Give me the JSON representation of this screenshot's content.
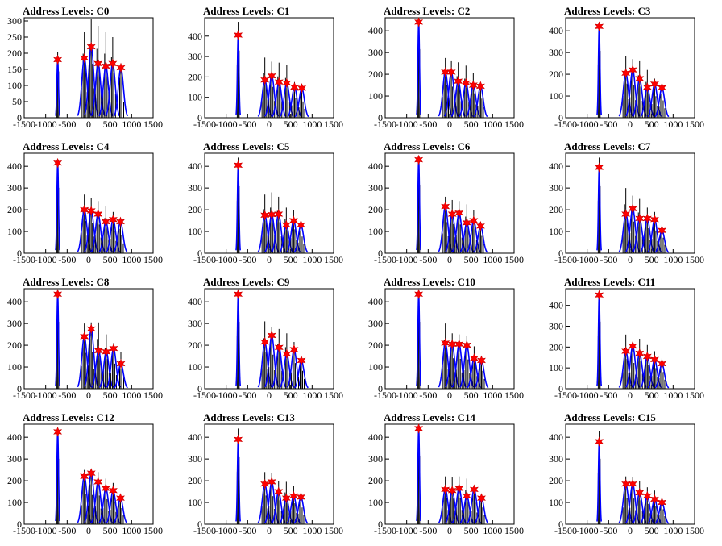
{
  "colors": {
    "histogram": "#000000",
    "fit": "#0000ff",
    "marker": "#ff0000"
  },
  "chart_data": [
    {
      "type": "histogram-with-markers",
      "title": "Address Levels: C0",
      "xlim": [
        -1500,
        1500
      ],
      "ylim": [
        0,
        310
      ],
      "xticks": [
        "-1500",
        "-1000",
        "-500",
        "0",
        "500",
        "1000",
        "1500"
      ],
      "yticks": [
        "0",
        "50",
        "100",
        "150",
        "200",
        "250",
        "300"
      ],
      "peaks": [
        {
          "x": -720,
          "y": 180,
          "h": 205
        },
        {
          "x": -100,
          "y": 185,
          "h": 265
        },
        {
          "x": 60,
          "y": 220,
          "h": 305
        },
        {
          "x": 220,
          "y": 168,
          "h": 285
        },
        {
          "x": 400,
          "y": 160,
          "h": 265
        },
        {
          "x": 560,
          "y": 168,
          "h": 250
        },
        {
          "x": 750,
          "y": 155,
          "h": 165
        }
      ]
    },
    {
      "type": "histogram-with-markers",
      "title": "Address Levels: C1",
      "xlim": [
        -1500,
        1500
      ],
      "ylim": [
        0,
        490
      ],
      "xticks": [
        "-1500",
        "-1000",
        "-500",
        "0",
        "500",
        "1000",
        "1500"
      ],
      "yticks": [
        "0",
        "100",
        "200",
        "300",
        "400"
      ],
      "peaks": [
        {
          "x": -720,
          "y": 405,
          "h": 470
        },
        {
          "x": -100,
          "y": 185,
          "h": 295
        },
        {
          "x": 60,
          "y": 205,
          "h": 275
        },
        {
          "x": 230,
          "y": 175,
          "h": 270
        },
        {
          "x": 410,
          "y": 170,
          "h": 260
        },
        {
          "x": 590,
          "y": 150,
          "h": 175
        },
        {
          "x": 760,
          "y": 145,
          "h": 145
        }
      ]
    },
    {
      "type": "histogram-with-markers",
      "title": "Address Levels: C2",
      "xlim": [
        -1500,
        1500
      ],
      "ylim": [
        0,
        460
      ],
      "xticks": [
        "-1500",
        "-1000",
        "-500",
        "0",
        "500",
        "1000",
        "1500"
      ],
      "yticks": [
        "0",
        "100",
        "200",
        "300",
        "400"
      ],
      "peaks": [
        {
          "x": -720,
          "y": 440,
          "h": 450
        },
        {
          "x": -100,
          "y": 210,
          "h": 275
        },
        {
          "x": 40,
          "y": 210,
          "h": 260
        },
        {
          "x": 200,
          "y": 168,
          "h": 255
        },
        {
          "x": 380,
          "y": 160,
          "h": 240
        },
        {
          "x": 550,
          "y": 150,
          "h": 205
        },
        {
          "x": 720,
          "y": 145,
          "h": 160
        }
      ]
    },
    {
      "type": "histogram-with-markers",
      "title": "Address Levels: C3",
      "xlim": [
        -1500,
        1500
      ],
      "ylim": [
        0,
        460
      ],
      "xticks": [
        "-1500",
        "-1000",
        "-500",
        "0",
        "500",
        "1000",
        "1500"
      ],
      "yticks": [
        "0",
        "100",
        "200",
        "300",
        "400"
      ],
      "peaks": [
        {
          "x": -720,
          "y": 420,
          "h": 440
        },
        {
          "x": -100,
          "y": 205,
          "h": 285
        },
        {
          "x": 60,
          "y": 220,
          "h": 270
        },
        {
          "x": 220,
          "y": 180,
          "h": 260
        },
        {
          "x": 400,
          "y": 140,
          "h": 220
        },
        {
          "x": 570,
          "y": 155,
          "h": 180
        },
        {
          "x": 740,
          "y": 138,
          "h": 145
        }
      ]
    },
    {
      "type": "histogram-with-markers",
      "title": "Address Levels: C4",
      "xlim": [
        -1500,
        1500
      ],
      "ylim": [
        0,
        460
      ],
      "xticks": [
        "-1500",
        "-1000",
        "-500",
        "0",
        "500",
        "1000",
        "1500"
      ],
      "yticks": [
        "0",
        "100",
        "200",
        "300",
        "400"
      ],
      "peaks": [
        {
          "x": -720,
          "y": 415,
          "h": 430
        },
        {
          "x": -100,
          "y": 200,
          "h": 270
        },
        {
          "x": 60,
          "y": 195,
          "h": 255
        },
        {
          "x": 220,
          "y": 180,
          "h": 240
        },
        {
          "x": 400,
          "y": 145,
          "h": 215
        },
        {
          "x": 570,
          "y": 155,
          "h": 190
        },
        {
          "x": 740,
          "y": 145,
          "h": 150
        }
      ]
    },
    {
      "type": "histogram-with-markers",
      "title": "Address Levels: C5",
      "xlim": [
        -1500,
        1500
      ],
      "ylim": [
        0,
        460
      ],
      "xticks": [
        "-1500",
        "-1000",
        "-500",
        "0",
        "500",
        "1000",
        "1500"
      ],
      "yticks": [
        "0",
        "100",
        "200",
        "300",
        "400"
      ],
      "peaks": [
        {
          "x": -720,
          "y": 405,
          "h": 440
        },
        {
          "x": -100,
          "y": 175,
          "h": 270
        },
        {
          "x": 60,
          "y": 178,
          "h": 280
        },
        {
          "x": 220,
          "y": 180,
          "h": 260
        },
        {
          "x": 400,
          "y": 130,
          "h": 210
        },
        {
          "x": 570,
          "y": 150,
          "h": 200
        },
        {
          "x": 740,
          "y": 130,
          "h": 140
        }
      ]
    },
    {
      "type": "histogram-with-markers",
      "title": "Address Levels: C6",
      "xlim": [
        -1500,
        1500
      ],
      "ylim": [
        0,
        460
      ],
      "xticks": [
        "-1500",
        "-1000",
        "-500",
        "0",
        "500",
        "1000",
        "1500"
      ],
      "yticks": [
        "0",
        "100",
        "200",
        "300",
        "400"
      ],
      "peaks": [
        {
          "x": -720,
          "y": 430,
          "h": 445
        },
        {
          "x": -100,
          "y": 215,
          "h": 260
        },
        {
          "x": 60,
          "y": 180,
          "h": 245
        },
        {
          "x": 220,
          "y": 185,
          "h": 240
        },
        {
          "x": 400,
          "y": 140,
          "h": 225
        },
        {
          "x": 560,
          "y": 150,
          "h": 200
        },
        {
          "x": 720,
          "y": 125,
          "h": 145
        }
      ]
    },
    {
      "type": "histogram-with-markers",
      "title": "Address Levels: C7",
      "xlim": [
        -1500,
        1500
      ],
      "ylim": [
        0,
        460
      ],
      "xticks": [
        "-1500",
        "-1000",
        "-500",
        "0",
        "500",
        "1000",
        "1500"
      ],
      "yticks": [
        "0",
        "100",
        "200",
        "300",
        "400"
      ],
      "peaks": [
        {
          "x": -720,
          "y": 395,
          "h": 440
        },
        {
          "x": -100,
          "y": 180,
          "h": 300
        },
        {
          "x": 60,
          "y": 205,
          "h": 265
        },
        {
          "x": 220,
          "y": 160,
          "h": 250
        },
        {
          "x": 400,
          "y": 160,
          "h": 210
        },
        {
          "x": 570,
          "y": 155,
          "h": 190
        },
        {
          "x": 740,
          "y": 105,
          "h": 130
        }
      ]
    },
    {
      "type": "histogram-with-markers",
      "title": "Address Levels: C8",
      "xlim": [
        -1500,
        1500
      ],
      "ylim": [
        0,
        460
      ],
      "xticks": [
        "-1500",
        "-1000",
        "-500",
        "0",
        "500",
        "1000",
        "1500"
      ],
      "yticks": [
        "0",
        "100",
        "200",
        "300",
        "400"
      ],
      "peaks": [
        {
          "x": -720,
          "y": 435,
          "h": 440
        },
        {
          "x": -100,
          "y": 240,
          "h": 300
        },
        {
          "x": 60,
          "y": 275,
          "h": 305
        },
        {
          "x": 230,
          "y": 175,
          "h": 305
        },
        {
          "x": 410,
          "y": 170,
          "h": 250
        },
        {
          "x": 580,
          "y": 185,
          "h": 210
        },
        {
          "x": 750,
          "y": 115,
          "h": 170
        }
      ]
    },
    {
      "type": "histogram-with-markers",
      "title": "Address Levels: C9",
      "xlim": [
        -1500,
        1500
      ],
      "ylim": [
        0,
        460
      ],
      "xticks": [
        "-1500",
        "-1000",
        "-500",
        "0",
        "500",
        "1000",
        "1500"
      ],
      "yticks": [
        "0",
        "100",
        "200",
        "300",
        "400"
      ],
      "peaks": [
        {
          "x": -720,
          "y": 435,
          "h": 440
        },
        {
          "x": -100,
          "y": 215,
          "h": 310
        },
        {
          "x": 60,
          "y": 245,
          "h": 285
        },
        {
          "x": 230,
          "y": 190,
          "h": 275
        },
        {
          "x": 410,
          "y": 160,
          "h": 255
        },
        {
          "x": 580,
          "y": 180,
          "h": 215
        },
        {
          "x": 750,
          "y": 130,
          "h": 150
        }
      ]
    },
    {
      "type": "histogram-with-markers",
      "title": "Address Levels: C10",
      "xlim": [
        -1500,
        1500
      ],
      "ylim": [
        0,
        460
      ],
      "xticks": [
        "-1500",
        "-1000",
        "-500",
        "0",
        "500",
        "1000",
        "1500"
      ],
      "yticks": [
        "0",
        "100",
        "200",
        "300",
        "400"
      ],
      "peaks": [
        {
          "x": -720,
          "y": 435,
          "h": 440
        },
        {
          "x": -100,
          "y": 210,
          "h": 300
        },
        {
          "x": 60,
          "y": 205,
          "h": 255
        },
        {
          "x": 220,
          "y": 205,
          "h": 250
        },
        {
          "x": 400,
          "y": 200,
          "h": 245
        },
        {
          "x": 570,
          "y": 140,
          "h": 195
        },
        {
          "x": 740,
          "y": 130,
          "h": 150
        }
      ]
    },
    {
      "type": "histogram-with-markers",
      "title": "Address Levels: C11",
      "xlim": [
        -1500,
        1500
      ],
      "ylim": [
        0,
        480
      ],
      "xticks": [
        "-1500",
        "-1000",
        "-500",
        "0",
        "500",
        "1000",
        "1500"
      ],
      "yticks": [
        "0",
        "100",
        "200",
        "300",
        "400"
      ],
      "peaks": [
        {
          "x": -720,
          "y": 450,
          "h": 460
        },
        {
          "x": -100,
          "y": 180,
          "h": 260
        },
        {
          "x": 60,
          "y": 205,
          "h": 225
        },
        {
          "x": 220,
          "y": 170,
          "h": 240
        },
        {
          "x": 400,
          "y": 155,
          "h": 210
        },
        {
          "x": 570,
          "y": 140,
          "h": 180
        },
        {
          "x": 740,
          "y": 120,
          "h": 145
        }
      ]
    },
    {
      "type": "histogram-with-markers",
      "title": "Address Levels: C12",
      "xlim": [
        -1500,
        1500
      ],
      "ylim": [
        0,
        460
      ],
      "xticks": [
        "-1500",
        "-1000",
        "-500",
        "0",
        "500",
        "1000",
        "1500"
      ],
      "yticks": [
        "0",
        "100",
        "200",
        "300",
        "400"
      ],
      "peaks": [
        {
          "x": -720,
          "y": 425,
          "h": 430
        },
        {
          "x": -100,
          "y": 220,
          "h": 250
        },
        {
          "x": 60,
          "y": 235,
          "h": 245
        },
        {
          "x": 220,
          "y": 195,
          "h": 240
        },
        {
          "x": 400,
          "y": 165,
          "h": 210
        },
        {
          "x": 570,
          "y": 155,
          "h": 190
        },
        {
          "x": 740,
          "y": 120,
          "h": 135
        }
      ]
    },
    {
      "type": "histogram-with-markers",
      "title": "Address Levels: C13",
      "xlim": [
        -1500,
        1500
      ],
      "ylim": [
        0,
        460
      ],
      "xticks": [
        "-1500",
        "-1000",
        "-500",
        "0",
        "500",
        "1000",
        "1500"
      ],
      "yticks": [
        "0",
        "100",
        "200",
        "300",
        "400"
      ],
      "peaks": [
        {
          "x": -720,
          "y": 390,
          "h": 440
        },
        {
          "x": -100,
          "y": 185,
          "h": 240
        },
        {
          "x": 60,
          "y": 195,
          "h": 235
        },
        {
          "x": 220,
          "y": 150,
          "h": 200
        },
        {
          "x": 400,
          "y": 120,
          "h": 195
        },
        {
          "x": 570,
          "y": 130,
          "h": 175
        },
        {
          "x": 740,
          "y": 125,
          "h": 140
        }
      ]
    },
    {
      "type": "histogram-with-markers",
      "title": "Address Levels: C14",
      "xlim": [
        -1500,
        1500
      ],
      "ylim": [
        0,
        460
      ],
      "xticks": [
        "-1500",
        "-1000",
        "-500",
        "0",
        "500",
        "1000",
        "1500"
      ],
      "yticks": [
        "0",
        "100",
        "200",
        "300",
        "400"
      ],
      "peaks": [
        {
          "x": -720,
          "y": 440,
          "h": 445
        },
        {
          "x": -100,
          "y": 160,
          "h": 220
        },
        {
          "x": 60,
          "y": 155,
          "h": 215
        },
        {
          "x": 220,
          "y": 165,
          "h": 220
        },
        {
          "x": 400,
          "y": 130,
          "h": 210
        },
        {
          "x": 570,
          "y": 160,
          "h": 180
        },
        {
          "x": 740,
          "y": 120,
          "h": 140
        }
      ]
    },
    {
      "type": "histogram-with-markers",
      "title": "Address Levels: C15",
      "xlim": [
        -1500,
        1500
      ],
      "ylim": [
        0,
        460
      ],
      "xticks": [
        "-1500",
        "-1000",
        "-500",
        "0",
        "500",
        "1000",
        "1500"
      ],
      "yticks": [
        "0",
        "100",
        "200",
        "300",
        "400"
      ],
      "peaks": [
        {
          "x": -720,
          "y": 380,
          "h": 430
        },
        {
          "x": -100,
          "y": 185,
          "h": 220
        },
        {
          "x": 60,
          "y": 185,
          "h": 215
        },
        {
          "x": 220,
          "y": 145,
          "h": 200
        },
        {
          "x": 400,
          "y": 130,
          "h": 170
        },
        {
          "x": 570,
          "y": 115,
          "h": 155
        },
        {
          "x": 740,
          "y": 100,
          "h": 125
        }
      ]
    }
  ]
}
